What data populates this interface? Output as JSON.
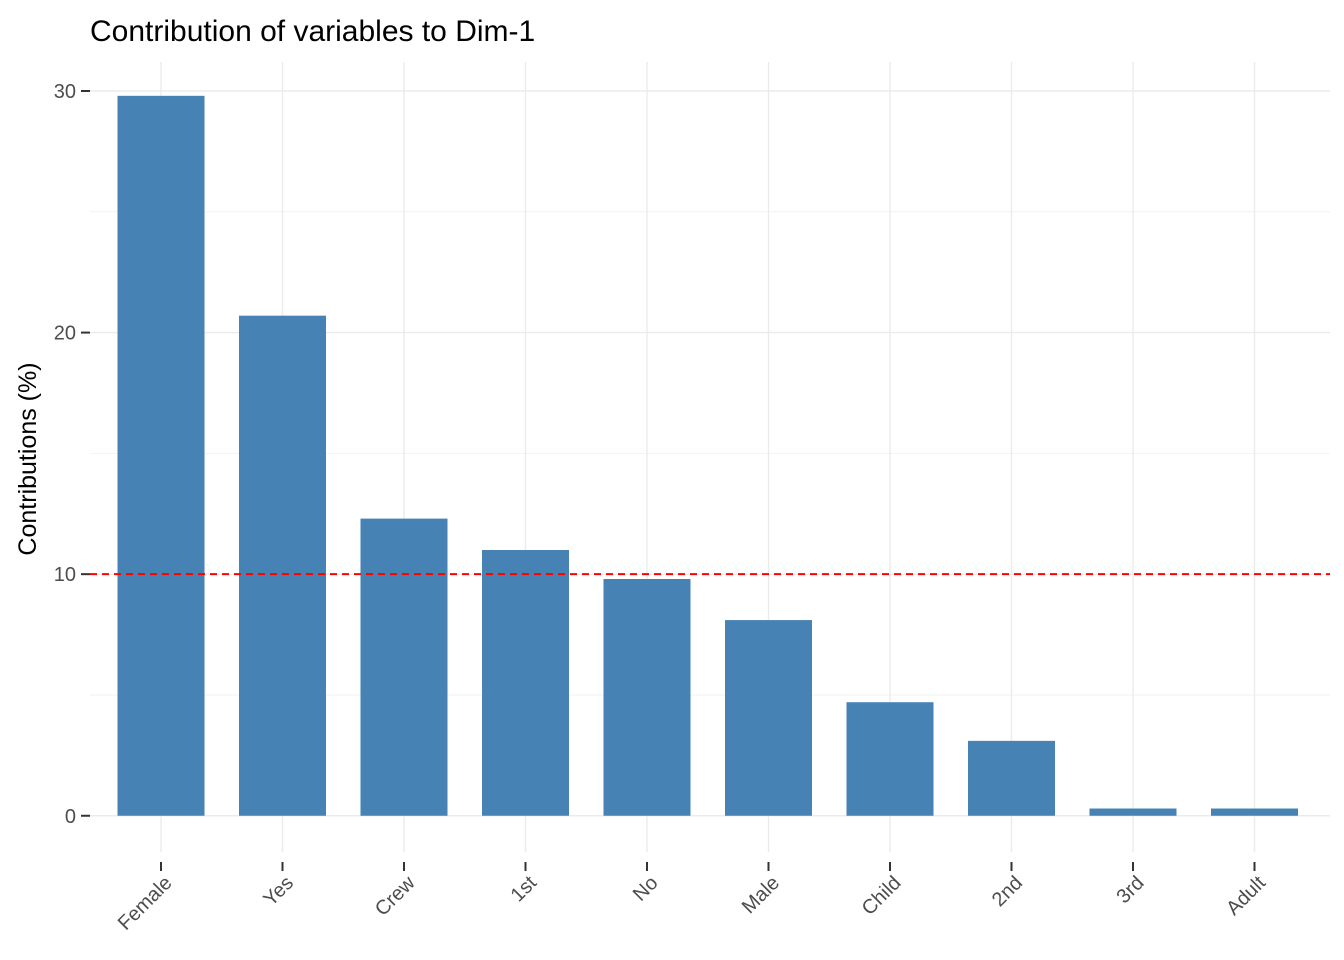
{
  "chart_data": {
    "type": "bar",
    "title": "Contribution of variables to Dim-1",
    "xlabel": "",
    "ylabel": "Contributions (%)",
    "categories": [
      "Female",
      "Yes",
      "Crew",
      "1st",
      "No",
      "Male",
      "Child",
      "2nd",
      "3rd",
      "Adult"
    ],
    "values": [
      29.8,
      20.7,
      12.3,
      11.0,
      9.8,
      8.1,
      4.7,
      3.1,
      0.3,
      0.3
    ],
    "ylim": [
      -1.5,
      31.2
    ],
    "yticks": [
      0,
      10,
      20,
      30
    ],
    "reference_line": {
      "value": 10,
      "color": "#ff0000",
      "style": "dashed"
    },
    "bar_color": "#4682b4",
    "grid": true,
    "legend": "none"
  }
}
